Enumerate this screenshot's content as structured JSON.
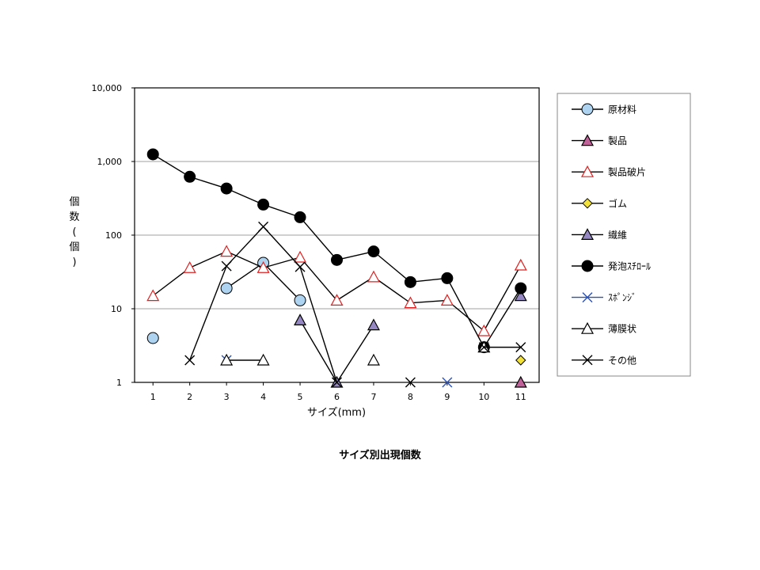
{
  "chart_data": {
    "type": "line",
    "title": "サイズ別出現個数",
    "xlabel": "サイズ(mm)",
    "ylabel": "個数(個)",
    "ylabel_chars": [
      "個",
      "数",
      "(",
      "個",
      ")"
    ],
    "yscale": "log",
    "ylim": [
      1,
      10000
    ],
    "yticks": [
      "1",
      "10",
      "100",
      "1,000",
      "10,000"
    ],
    "categories": [
      "1",
      "2",
      "3",
      "4",
      "5",
      "6",
      "7",
      "8",
      "9",
      "10",
      "11"
    ],
    "grid": "horizontal",
    "legend_position": "right",
    "series": [
      {
        "name": "原材料",
        "marker": "circle",
        "fill": "#aed3f0",
        "stroke": "#000000",
        "line": "#000000",
        "values": [
          4,
          null,
          19,
          42,
          13,
          null,
          null,
          null,
          null,
          null,
          null
        ]
      },
      {
        "name": "製品",
        "marker": "triangle",
        "fill": "#c0619a",
        "stroke": "#000000",
        "line": "#000000",
        "values": [
          null,
          null,
          null,
          null,
          null,
          null,
          null,
          null,
          null,
          null,
          1
        ]
      },
      {
        "name": "製品破片",
        "marker": "triangle",
        "fill": "#ffffff",
        "stroke": "#e02020",
        "line": "#000000",
        "values": [
          15,
          36,
          60,
          36,
          50,
          13,
          27,
          12,
          13,
          5,
          39
        ]
      },
      {
        "name": "ゴム",
        "marker": "diamond",
        "fill": "#f2e13a",
        "stroke": "#000000",
        "line": "#000000",
        "values": [
          null,
          null,
          null,
          null,
          null,
          null,
          null,
          null,
          null,
          null,
          2
        ]
      },
      {
        "name": "繊維",
        "marker": "triangle",
        "fill": "#9588c2",
        "stroke": "#000000",
        "line": "#000000",
        "values": [
          null,
          null,
          null,
          null,
          7,
          1,
          6,
          null,
          null,
          null,
          15
        ]
      },
      {
        "name": "発泡ｽﾁﾛｰﾙ",
        "marker": "circle",
        "fill": "#000000",
        "stroke": "#000000",
        "line": "#000000",
        "values": [
          1250,
          620,
          430,
          260,
          175,
          46,
          60,
          23,
          26,
          3,
          19
        ]
      },
      {
        "name": "ｽﾎﾟﾝｼﾞ",
        "marker": "x",
        "fill": "none",
        "stroke": "#2a52b8",
        "line": "#2a52b8",
        "values": [
          null,
          null,
          2,
          null,
          null,
          null,
          null,
          null,
          1,
          null,
          null
        ]
      },
      {
        "name": "薄膜状",
        "marker": "triangle",
        "fill": "#ffffff",
        "stroke": "#000000",
        "line": "#000000",
        "values": [
          null,
          null,
          2,
          2,
          null,
          null,
          2,
          null,
          null,
          3,
          null
        ]
      },
      {
        "name": "その他",
        "marker": "x",
        "fill": "none",
        "stroke": "#000000",
        "line": "#000000",
        "values": [
          null,
          2,
          38,
          130,
          37,
          1,
          null,
          1,
          null,
          3,
          3
        ]
      }
    ]
  }
}
